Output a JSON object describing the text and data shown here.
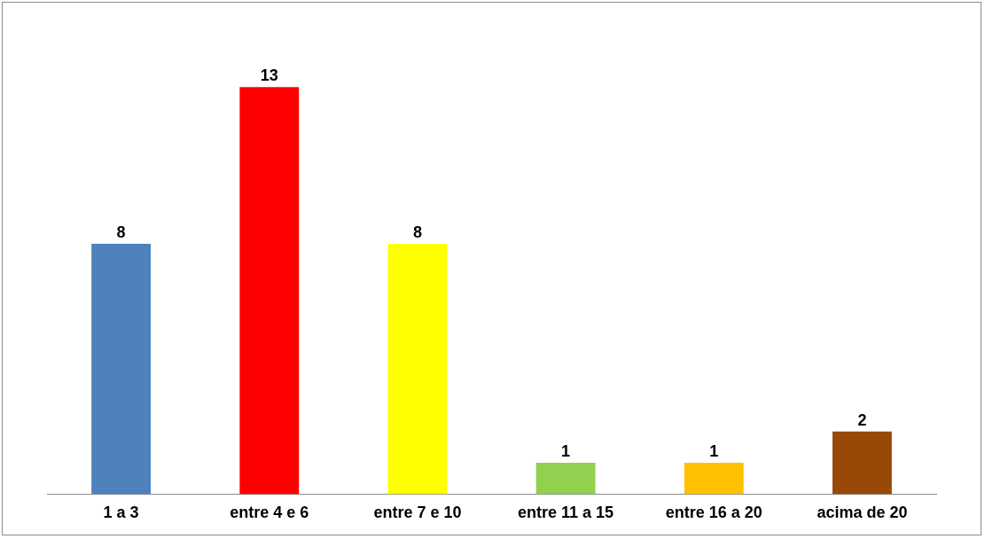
{
  "chart_data": {
    "type": "bar",
    "categories": [
      "1 a 3",
      "entre 4 e 6",
      "entre 7 e 10",
      "entre 11 a 15",
      "entre 16 a 20",
      "acima de 20"
    ],
    "values": [
      8,
      13,
      8,
      1,
      1,
      2
    ],
    "colors": [
      "#4f81bd",
      "#ff0000",
      "#ffff00",
      "#92d050",
      "#ffc000",
      "#984807"
    ],
    "data_labels": true,
    "grid": false,
    "legend": false
  }
}
